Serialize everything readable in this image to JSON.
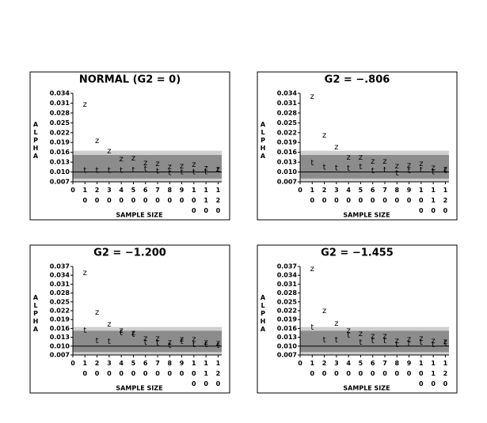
{
  "chart_data": [
    {
      "type": "scatter",
      "title": "NORMAL (G2 = 0)",
      "ylabel": "ALPHA",
      "xlabel": "SAMPLE SIZE",
      "x": [
        10,
        20,
        30,
        40,
        50,
        60,
        70,
        80,
        90,
        100,
        110,
        120
      ],
      "series": [
        {
          "name": "z",
          "color": "#000000",
          "values": [
            0.0306,
            0.0195,
            0.0164,
            0.014,
            0.0142,
            0.0128,
            0.0125,
            0.0116,
            0.0118,
            0.0123,
            0.0112,
            0.0109
          ]
        },
        {
          "name": "t",
          "color": "#000000",
          "values": [
            0.0105,
            0.0105,
            0.0105,
            0.0105,
            0.0106,
            0.011,
            0.0102,
            0.0098,
            0.01,
            0.01,
            0.01,
            0.0106
          ]
        }
      ],
      "xlim": [
        0,
        123
      ],
      "xticks": [
        0,
        10,
        20,
        30,
        40,
        50,
        60,
        70,
        80,
        90,
        100,
        110,
        120
      ],
      "ylim": [
        0.007,
        0.034
      ],
      "yticks": [
        0.007,
        {
          "value": 0.01,
          "label": "0.010"
        },
        0.013,
        0.016,
        0.019,
        0.022,
        0.025,
        0.028,
        0.031,
        0.034
      ],
      "hline": 0.01,
      "bands": [
        {
          "low": 0.007,
          "high": 0.0165,
          "color": "#cfcfcf"
        },
        {
          "low": 0.008,
          "high": 0.0152,
          "color": "#8c8c8c"
        }
      ]
    },
    {
      "type": "scatter",
      "title": "G2 = −.806",
      "ylabel": "ALPHA",
      "xlabel": "SAMPLE SIZE",
      "x": [
        10,
        20,
        30,
        40,
        50,
        60,
        70,
        80,
        90,
        100,
        110,
        120
      ],
      "series": [
        {
          "name": "z",
          "color": "#000000",
          "values": [
            0.033,
            0.0212,
            0.0176,
            0.0145,
            0.0145,
            0.0133,
            0.0133,
            0.0118,
            0.0121,
            0.0125,
            0.0113,
            0.011
          ]
        },
        {
          "name": "t",
          "color": "#000000",
          "values": [
            0.0128,
            0.0115,
            0.0112,
            0.0111,
            0.0116,
            0.0104,
            0.0106,
            0.0096,
            0.0104,
            0.0106,
            0.01,
            0.0104
          ]
        }
      ],
      "xlim": [
        0,
        123
      ],
      "xticks": [
        0,
        10,
        20,
        30,
        40,
        50,
        60,
        70,
        80,
        90,
        100,
        110,
        120
      ],
      "ylim": [
        0.007,
        0.034
      ],
      "yticks": [
        0.007,
        {
          "value": 0.01,
          "label": "0.010"
        },
        0.013,
        0.016,
        0.019,
        0.022,
        0.025,
        0.028,
        0.031,
        0.034
      ],
      "hline": 0.01,
      "bands": [
        {
          "low": 0.007,
          "high": 0.0165,
          "color": "#cfcfcf"
        },
        {
          "low": 0.008,
          "high": 0.0152,
          "color": "#8c8c8c"
        }
      ]
    },
    {
      "type": "scatter",
      "title": "G2 = −1.200",
      "ylabel": "ALPHA",
      "xlabel": "SAMPLE SIZE",
      "x": [
        10,
        20,
        30,
        40,
        50,
        60,
        70,
        80,
        90,
        100,
        110,
        120
      ],
      "series": [
        {
          "name": "z",
          "color": "#000000",
          "values": [
            0.0349,
            0.0215,
            0.0174,
            0.0153,
            0.0145,
            0.0126,
            0.0126,
            0.0113,
            0.0123,
            0.0123,
            0.0113,
            0.011
          ]
        },
        {
          "name": "t",
          "color": "#000000",
          "values": [
            0.0153,
            0.0118,
            0.0115,
            0.0145,
            0.014,
            0.0113,
            0.011,
            0.0102,
            0.0115,
            0.0105,
            0.0105,
            0.0102
          ]
        }
      ],
      "xlim": [
        0,
        123
      ],
      "xticks": [
        0,
        10,
        20,
        30,
        40,
        50,
        60,
        70,
        80,
        90,
        100,
        110,
        120
      ],
      "ylim": [
        0.007,
        0.037
      ],
      "yticks": [
        0.007,
        {
          "value": 0.01,
          "label": "0.010"
        },
        0.013,
        0.016,
        0.019,
        0.022,
        0.025,
        0.028,
        0.031,
        0.034,
        0.037
      ],
      "hline": 0.01,
      "bands": [
        {
          "low": 0.007,
          "high": 0.0165,
          "color": "#cfcfcf"
        },
        {
          "low": 0.008,
          "high": 0.0152,
          "color": "#8c8c8c"
        }
      ]
    },
    {
      "type": "scatter",
      "title": "G2 = −1.455",
      "ylabel": "ALPHA",
      "xlabel": "SAMPLE SIZE",
      "x": [
        10,
        20,
        30,
        40,
        50,
        60,
        70,
        80,
        90,
        100,
        110,
        120
      ],
      "series": [
        {
          "name": "z",
          "color": "#000000",
          "values": [
            0.0362,
            0.022,
            0.0177,
            0.0153,
            0.0142,
            0.0134,
            0.0134,
            0.0118,
            0.0123,
            0.0126,
            0.0118,
            0.0115
          ]
        },
        {
          "name": "t",
          "color": "#000000",
          "values": [
            0.0164,
            0.0121,
            0.0121,
            0.0137,
            0.0113,
            0.0118,
            0.0118,
            0.0105,
            0.0107,
            0.0113,
            0.0105,
            0.011
          ]
        }
      ],
      "xlim": [
        0,
        123
      ],
      "xticks": [
        0,
        10,
        20,
        30,
        40,
        50,
        60,
        70,
        80,
        90,
        100,
        110,
        120
      ],
      "ylim": [
        0.007,
        0.037
      ],
      "yticks": [
        0.007,
        {
          "value": 0.01,
          "label": "0.010"
        },
        0.013,
        0.016,
        0.019,
        0.022,
        0.025,
        0.028,
        0.031,
        0.034,
        0.037
      ],
      "hline": 0.01,
      "bands": [
        {
          "low": 0.007,
          "high": 0.0165,
          "color": "#cfcfcf"
        },
        {
          "low": 0.008,
          "high": 0.0152,
          "color": "#8c8c8c"
        }
      ]
    }
  ]
}
